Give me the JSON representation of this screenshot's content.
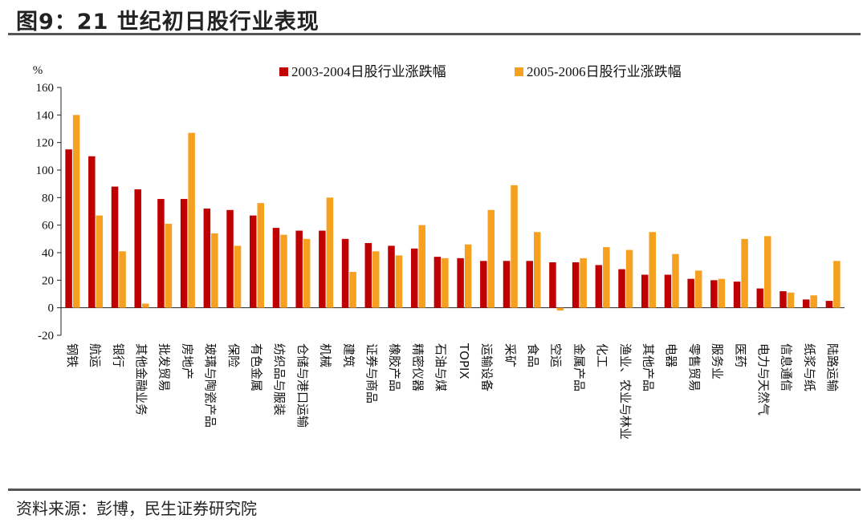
{
  "figure": {
    "title": "图9：21 世纪初日股行业表现",
    "source": "资料来源：彭博，民生证券研究院"
  },
  "chart_data": {
    "type": "bar",
    "title": "",
    "ylabel": "%",
    "xlabel": "",
    "ylim": [
      -20,
      160
    ],
    "yticks": [
      -20,
      0,
      20,
      40,
      60,
      80,
      100,
      120,
      140,
      160
    ],
    "grid": false,
    "legend_position": "top-right",
    "categories": [
      "钢铁",
      "航运",
      "银行",
      "其他金融业务",
      "批发贸易",
      "房地产",
      "玻璃与陶瓷产品",
      "保险",
      "有色金属",
      "纺织品与服装",
      "仓储与港口运输",
      "机械",
      "建筑",
      "证券与商品",
      "橡胶产品",
      "精密仪器",
      "石油与煤",
      "TOPIX",
      "运输设备",
      "采矿",
      "食品",
      "空运",
      "金属产品",
      "化工",
      "渔业、农业与林业",
      "其他产品",
      "电器",
      "零售贸易",
      "服务业",
      "医药",
      "电力与天然气",
      "信息通信",
      "纸浆与纸",
      "陆路运输"
    ],
    "series": [
      {
        "name": "2003-2004日股行业涨跌幅",
        "color": "#C00000",
        "values": [
          115,
          110,
          88,
          86,
          79,
          79,
          72,
          71,
          67,
          58,
          56,
          56,
          50,
          47,
          45,
          43,
          37,
          36,
          34,
          34,
          34,
          33,
          33,
          31,
          28,
          24,
          24,
          21,
          20,
          19,
          14,
          12,
          6,
          5
        ]
      },
      {
        "name": "2005-2006日股行业涨跌幅",
        "color": "#F5A01F",
        "values": [
          140,
          67,
          41,
          3,
          61,
          127,
          54,
          45,
          76,
          53,
          50,
          80,
          26,
          41,
          38,
          60,
          36,
          46,
          71,
          89,
          55,
          -2,
          36,
          44,
          42,
          55,
          39,
          27,
          21,
          50,
          52,
          11,
          9,
          34
        ]
      }
    ]
  }
}
